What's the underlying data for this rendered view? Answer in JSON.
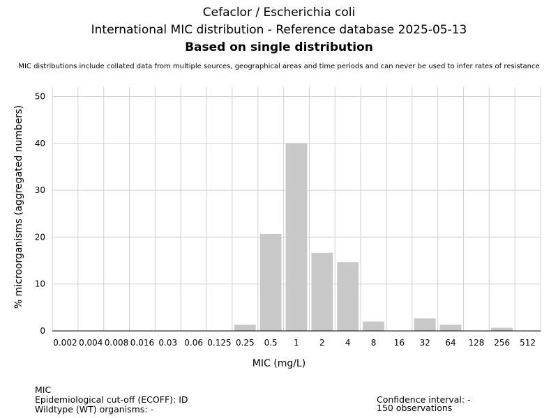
{
  "chart_data": {
    "type": "bar",
    "title": "Cefaclor / Escherichia coli",
    "subtitle": "International MIC distribution - Reference database 2025-05-13",
    "subtitle2": "Based on single distribution",
    "note": "MIC distributions include collated data from multiple sources, geographical areas and time periods and can never be used to infer rates of resistance",
    "xlabel": "MIC (mg/L)",
    "ylabel": "% microorganisms (aggregated numbers)",
    "categories": [
      "0.002",
      "0.004",
      "0.008",
      "0.016",
      "0.03",
      "0.06",
      "0.125",
      "0.25",
      "0.5",
      "1",
      "2",
      "4",
      "8",
      "16",
      "32",
      "64",
      "128",
      "256",
      "512"
    ],
    "values": [
      0,
      0,
      0,
      0,
      0,
      0,
      0,
      1.33,
      20.67,
      40,
      16.67,
      14.67,
      2,
      0,
      2.67,
      1.33,
      0,
      0.67,
      0
    ],
    "yticks": [
      0,
      10,
      20,
      30,
      40,
      50
    ],
    "ylim": [
      0,
      52
    ],
    "grid": true,
    "bar_color": "#c8c8c8"
  },
  "footer": {
    "mic": "MIC",
    "ecoff": "Epidemiological cut-off (ECOFF): ID",
    "wt": "Wildtype (WT) organisms:  -",
    "ci": "Confidence interval: -",
    "obs": "150 observations"
  }
}
